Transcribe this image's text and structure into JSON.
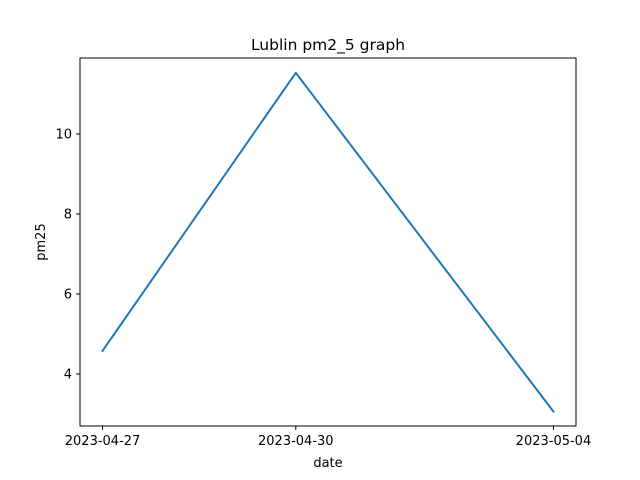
{
  "chart_data": {
    "type": "line",
    "title": "Lublin pm2_5 graph",
    "xlabel": "date",
    "ylabel": "pm25",
    "x": [
      "2023-04-27",
      "2023-04-30",
      "2023-05-04"
    ],
    "xticks": [
      "2023-04-27",
      "2023-04-30",
      "2023-05-04"
    ],
    "yticks": [
      4,
      6,
      8,
      10
    ],
    "ylim": [
      2.7,
      11.9
    ],
    "grid": false,
    "series": [
      {
        "color": "#1f77b4",
        "values": [
          4.58,
          11.53,
          3.06
        ]
      }
    ]
  }
}
